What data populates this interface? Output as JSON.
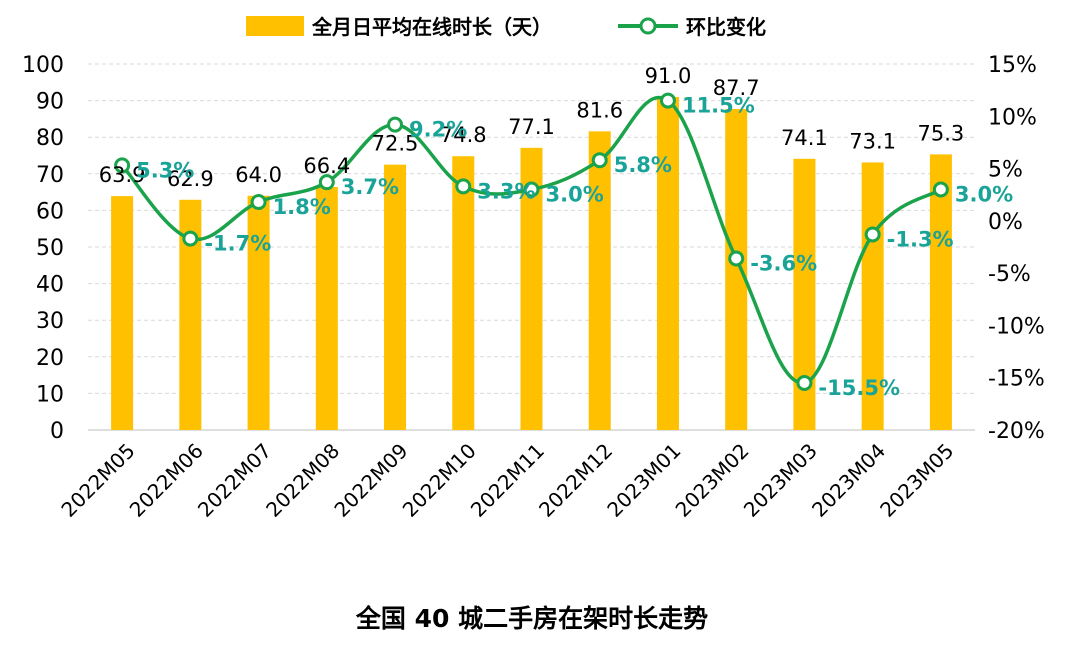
{
  "chart_data": {
    "type": "bar",
    "title": "全国 40 城二手房在架时长走势",
    "categories": [
      "2022M05",
      "2022M06",
      "2022M07",
      "2022M08",
      "2022M09",
      "2022M10",
      "2022M11",
      "2022M12",
      "2023M01",
      "2023M02",
      "2023M03",
      "2023M04",
      "2023M05"
    ],
    "series": [
      {
        "name": "全月日平均在线时长（天）",
        "type": "bar",
        "axis": "left",
        "color": "#ffc000",
        "values": [
          63.9,
          62.9,
          64.0,
          66.4,
          72.5,
          74.8,
          77.1,
          81.6,
          91.0,
          87.7,
          74.1,
          73.1,
          75.3
        ],
        "labels": [
          "63.9",
          "62.9",
          "64.0",
          "66.4",
          "72.5",
          "74.8",
          "77.1",
          "81.6",
          "91.0",
          "87.7",
          "74.1",
          "73.1",
          "75.3"
        ]
      },
      {
        "name": "环比变化",
        "type": "line",
        "axis": "right",
        "color": "#1aa34a",
        "label_color": "#1aa398",
        "values": [
          5.3,
          -1.7,
          1.8,
          3.7,
          9.2,
          3.3,
          3.0,
          5.8,
          11.5,
          -3.6,
          -15.5,
          -1.3,
          3.0
        ],
        "labels": [
          "5.3%",
          "-1.7%",
          "1.8%",
          "3.7%",
          "9.2%",
          "3.3%",
          "3.0%",
          "5.8%",
          "11.5%",
          "-3.6%",
          "-15.5%",
          "-1.3%",
          "3.0%"
        ]
      }
    ],
    "left_axis": {
      "min": 0,
      "max": 100,
      "step": 10,
      "ticks": [
        "0",
        "10",
        "20",
        "30",
        "40",
        "50",
        "60",
        "70",
        "80",
        "90",
        "100"
      ]
    },
    "right_axis": {
      "min": -20,
      "max": 15,
      "step": 5,
      "ticks": [
        "-20%",
        "-15%",
        "-10%",
        "-5%",
        "0%",
        "5%",
        "10%",
        "15%"
      ]
    },
    "grid": true,
    "legend_position": "top"
  }
}
